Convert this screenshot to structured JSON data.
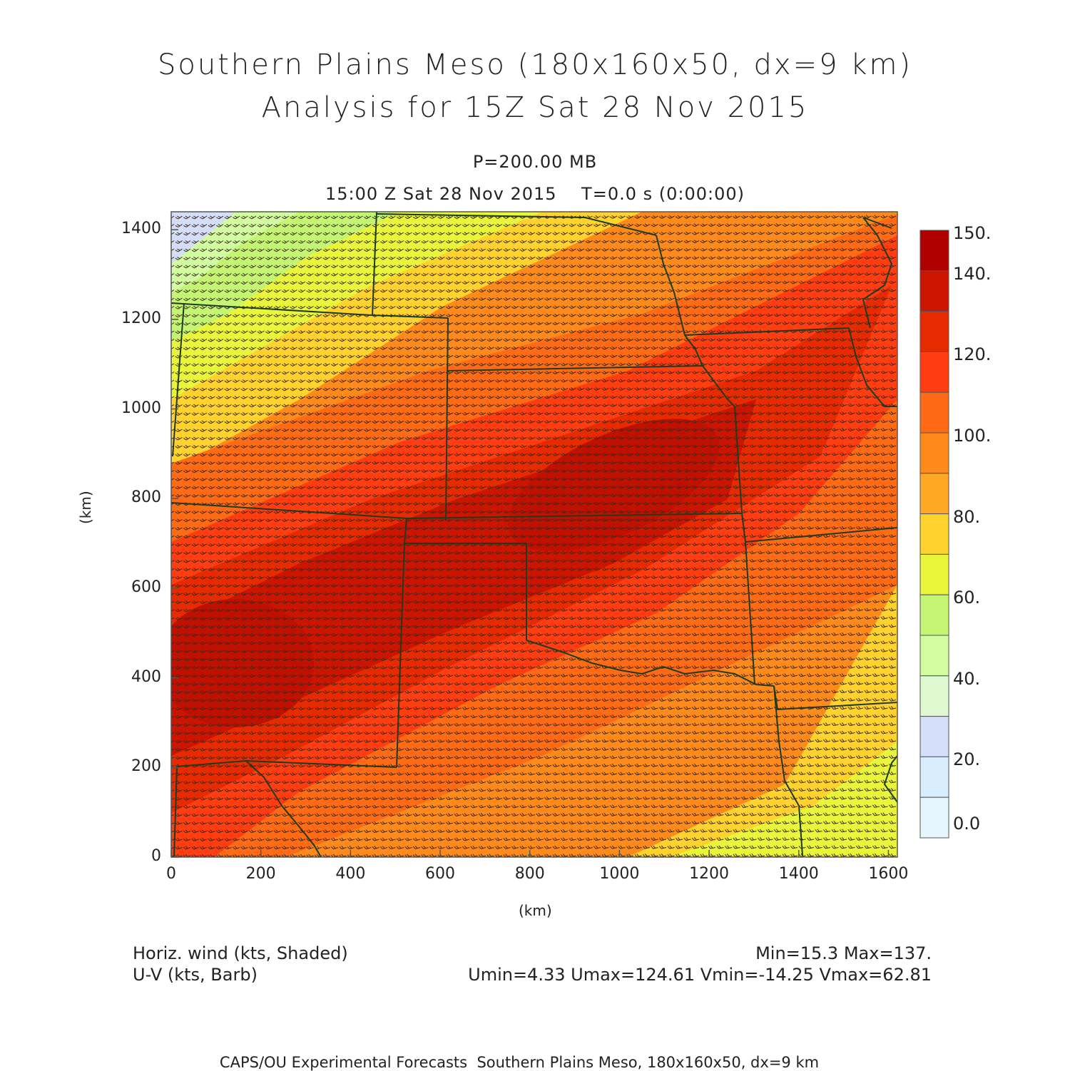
{
  "title_line1": "Southern Plains Meso (180x160x50, dx=9 km)",
  "title_line2": "Analysis for 15Z Sat 28 Nov 2015",
  "level_label": "P=200.00 MB",
  "time_label": "15:00 Z Sat 28 Nov 2015    T=0.0 s (0:00:00)",
  "x_axis_label": "(km)",
  "y_axis_label": "(km)",
  "x_ticks": [
    "0",
    "200",
    "400",
    "600",
    "800",
    "1000",
    "1200",
    "1400",
    "1600"
  ],
  "y_ticks": [
    "0",
    "200",
    "400",
    "600",
    "800",
    "1000",
    "1200",
    "1400"
  ],
  "colorbar": {
    "labels": [
      "150.",
      "140.",
      "120.",
      "100.",
      "80.",
      "60.",
      "40.",
      "20.",
      "0.0"
    ],
    "colors": [
      "#b00000",
      "#cc1500",
      "#e82a00",
      "#ff3d10",
      "#ff6a14",
      "#ff8a1c",
      "#ffa824",
      "#ffd22e",
      "#e8f53a",
      "#c4f572",
      "#d2fca0",
      "#dffad0",
      "#d4def8",
      "#d8eefe",
      "#e6f6ff"
    ]
  },
  "legend_left_line1": "Horiz. wind (kts, Shaded)",
  "legend_left_line2": "U-V (kts, Barb)",
  "legend_right_line1": "Min=15.3 Max=137.",
  "legend_right_line2": "Umin=4.33 Umax=124.61 Vmin=-14.25 Vmax=62.81",
  "footer": "CAPS/OU Experimental Forecasts  Southern Plains Meso, 180x160x50, dx=9 km",
  "chart_data": {
    "type": "heatmap",
    "field": "Horiz. wind (kts, Shaded)",
    "overlay": "U-V (kts, Barb)",
    "xlim": [
      0,
      1620
    ],
    "ylim": [
      0,
      1440
    ],
    "colorbar_range": [
      0,
      150
    ],
    "min": 15.3,
    "max": 137.0,
    "umin": 4.33,
    "umax": 124.61,
    "vmin": -14.25,
    "vmax": 62.81,
    "jet_axis_km": [
      [
        0,
        400
      ],
      [
        500,
        600
      ],
      [
        900,
        850
      ],
      [
        1250,
        1050
      ]
    ],
    "low_speed_corner_km": [
      0,
      1440
    ]
  }
}
